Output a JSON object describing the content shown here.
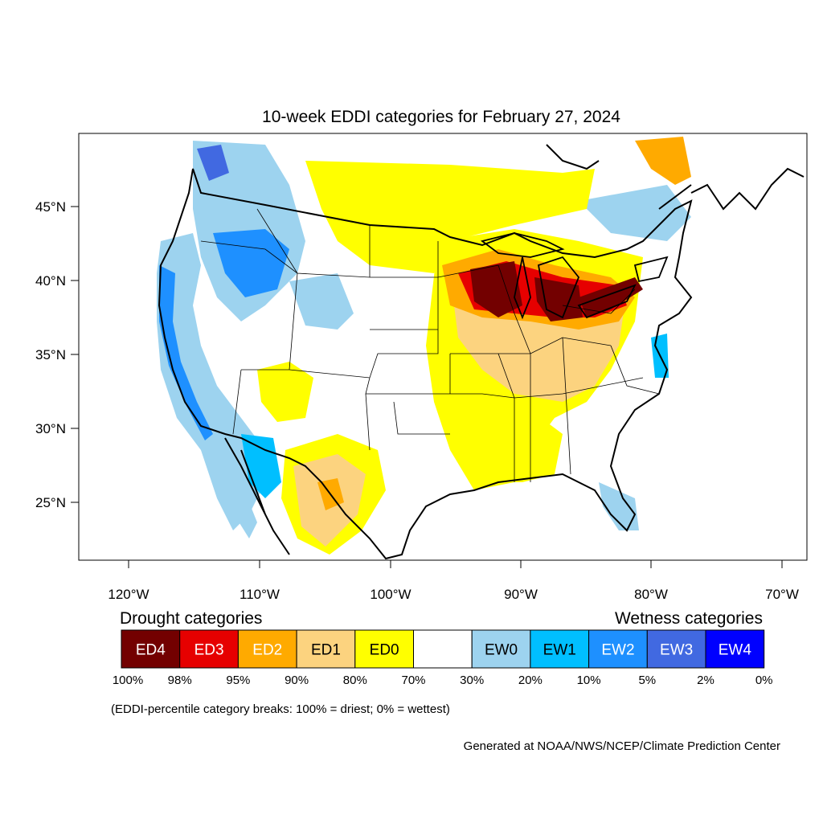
{
  "title": "10-week EDDI categories for February 27, 2024",
  "map": {
    "lat_labels": [
      "45°N",
      "40°N",
      "35°N",
      "30°N",
      "25°N"
    ],
    "lon_labels": [
      "120°W",
      "110°W",
      "100°W",
      "90°W",
      "80°W",
      "70°W"
    ]
  },
  "legend": {
    "drought_heading": "Drought categories",
    "wetness_heading": "Wetness categories",
    "categories": [
      {
        "label": "ED4",
        "color": "#730000",
        "text_color": "#ffffff"
      },
      {
        "label": "ED3",
        "color": "#e60000",
        "text_color": "#ffffff"
      },
      {
        "label": "ED2",
        "color": "#ffaa00",
        "text_color": "#ffffff"
      },
      {
        "label": "ED1",
        "color": "#fcd37f",
        "text_color": "#000000"
      },
      {
        "label": "ED0",
        "color": "#ffff00",
        "text_color": "#000000"
      },
      {
        "label": "",
        "color": "#ffffff",
        "text_color": "#000000"
      },
      {
        "label": "EW0",
        "color": "#9dd3ef",
        "text_color": "#000000"
      },
      {
        "label": "EW1",
        "color": "#00bfff",
        "text_color": "#000000"
      },
      {
        "label": "EW2",
        "color": "#1e90ff",
        "text_color": "#ffffff"
      },
      {
        "label": "EW3",
        "color": "#4169e1",
        "text_color": "#ffffff"
      },
      {
        "label": "EW4",
        "color": "#0000ff",
        "text_color": "#ffffff"
      }
    ],
    "breaks": [
      "100%",
      "98%",
      "95%",
      "90%",
      "80%",
      "70%",
      "30%",
      "20%",
      "10%",
      "5%",
      "2%",
      "0%"
    ],
    "note": "(EDDI-percentile category breaks: 100% = driest; 0% = wettest)"
  },
  "credit": "Generated at NOAA/NWS/NCEP/Climate Prediction Center"
}
